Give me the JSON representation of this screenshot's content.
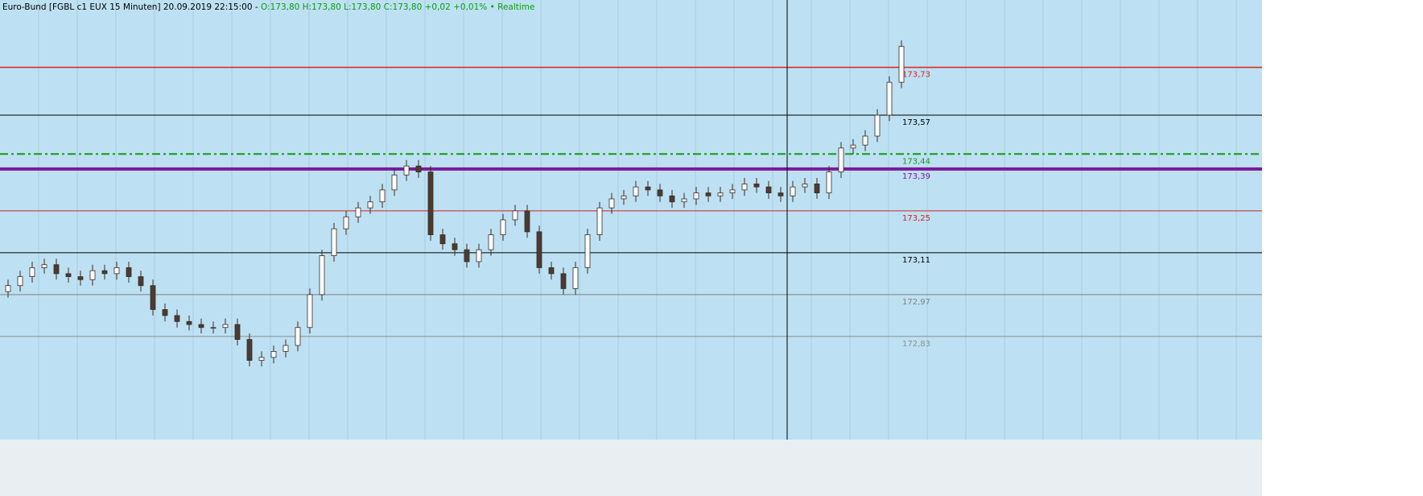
{
  "chart_data": {
    "type": "candlestick",
    "header": {
      "name": "Euro-Bund [FGBL c1 EUX 15 Minuten] 20.09.2019 22:15:00 -",
      "quote": "O:173,80 H:173,80 L:173,80 C:173,80 +0,02 +0,01%",
      "status": "• Realtime"
    },
    "ylim": [
      172.485,
      173.955
    ],
    "yticks": [
      {
        "value": 173.73,
        "label": "173,73"
      },
      {
        "value": 173.57,
        "label": "173,57"
      },
      {
        "value": 173.44,
        "label": "173,44"
      },
      {
        "value": 173.39,
        "label": "173,39"
      },
      {
        "value": 173.25,
        "label": "173,25"
      },
      {
        "value": 173.11,
        "label": "173,11"
      },
      {
        "value": 172.97,
        "label": "172,97"
      },
      {
        "value": 172.83,
        "label": "172,83"
      }
    ],
    "ytick_colors": [
      "#e02020",
      "#000000",
      "#139a13",
      "#7a1a9a",
      "#d42020",
      "#000000",
      "#7f7f7f",
      "#8f8f8f"
    ],
    "ytick_styles": [
      "solid",
      "solid",
      "dash-dot",
      "thick",
      "solid",
      "solid",
      "solid",
      "solid"
    ],
    "up_color": "#ffffff",
    "down_color": "#4a3b33",
    "open": [
      172.98,
      173.0,
      173.03,
      173.06,
      173.07,
      173.04,
      173.03,
      173.02,
      173.05,
      173.04,
      173.06,
      173.03,
      173.0,
      172.92,
      172.9,
      172.88,
      172.87,
      172.86,
      172.86,
      172.87,
      172.82,
      172.75,
      172.76,
      172.78,
      172.8,
      172.86,
      172.97,
      173.1,
      173.19,
      173.23,
      173.26,
      173.28,
      173.32,
      173.37,
      173.4,
      173.38,
      173.17,
      173.14,
      173.12,
      173.08,
      173.12,
      173.17,
      173.22,
      173.25,
      173.18,
      173.06,
      173.04,
      172.99,
      173.06,
      173.17,
      173.26,
      173.29,
      173.3,
      173.33,
      173.32,
      173.3,
      173.28,
      173.29,
      173.31,
      173.3,
      173.31,
      173.32,
      173.34,
      173.33,
      173.31,
      173.3,
      173.33,
      173.34,
      173.31,
      173.38,
      173.46,
      173.47,
      173.5,
      173.57,
      173.68
    ],
    "high": [
      173.02,
      173.05,
      173.08,
      173.09,
      173.09,
      173.06,
      173.05,
      173.07,
      173.07,
      173.08,
      173.08,
      173.05,
      173.02,
      172.94,
      172.92,
      172.9,
      172.89,
      172.88,
      172.89,
      172.89,
      172.84,
      172.78,
      172.8,
      172.82,
      172.88,
      172.99,
      173.12,
      173.21,
      173.25,
      173.28,
      173.3,
      173.34,
      173.39,
      173.42,
      173.42,
      173.4,
      173.19,
      173.16,
      173.14,
      173.14,
      173.19,
      173.24,
      173.27,
      173.27,
      173.2,
      173.08,
      173.06,
      173.08,
      173.19,
      173.28,
      173.31,
      173.32,
      173.35,
      173.35,
      173.34,
      173.32,
      173.31,
      173.33,
      173.33,
      173.33,
      173.34,
      173.36,
      173.36,
      173.35,
      173.33,
      173.35,
      173.36,
      173.36,
      173.4,
      173.48,
      173.49,
      173.52,
      173.59,
      173.7,
      173.82
    ],
    "low": [
      172.96,
      172.98,
      173.01,
      173.04,
      173.02,
      173.01,
      173.0,
      173.0,
      173.02,
      173.02,
      173.01,
      172.98,
      172.9,
      172.88,
      172.86,
      172.85,
      172.84,
      172.84,
      172.84,
      172.8,
      172.73,
      172.73,
      172.74,
      172.76,
      172.78,
      172.84,
      172.95,
      173.08,
      173.17,
      173.21,
      173.24,
      173.26,
      173.3,
      173.35,
      173.36,
      173.15,
      173.12,
      173.1,
      173.06,
      173.06,
      173.1,
      173.15,
      173.2,
      173.16,
      173.04,
      173.02,
      172.97,
      172.97,
      173.04,
      173.15,
      173.24,
      173.27,
      173.28,
      173.3,
      173.28,
      173.26,
      173.26,
      173.27,
      173.28,
      173.28,
      173.29,
      173.3,
      173.31,
      173.29,
      173.28,
      173.28,
      173.31,
      173.29,
      173.29,
      173.36,
      173.44,
      173.45,
      173.48,
      173.55,
      173.66
    ],
    "close": [
      173.0,
      173.03,
      173.06,
      173.07,
      173.04,
      173.03,
      173.02,
      173.05,
      173.04,
      173.06,
      173.03,
      173.0,
      172.92,
      172.9,
      172.88,
      172.87,
      172.86,
      172.86,
      172.87,
      172.82,
      172.75,
      172.76,
      172.78,
      172.8,
      172.86,
      172.97,
      173.1,
      173.19,
      173.23,
      173.26,
      173.28,
      173.32,
      173.37,
      173.4,
      173.38,
      173.17,
      173.14,
      173.12,
      173.08,
      173.12,
      173.17,
      173.22,
      173.25,
      173.18,
      173.06,
      173.04,
      172.99,
      173.06,
      173.17,
      173.26,
      173.29,
      173.3,
      173.33,
      173.32,
      173.3,
      173.28,
      173.29,
      173.31,
      173.3,
      173.31,
      173.32,
      173.34,
      173.33,
      173.31,
      173.3,
      173.33,
      173.34,
      173.31,
      173.38,
      173.46,
      173.47,
      173.5,
      173.57,
      173.68,
      173.8
    ]
  }
}
